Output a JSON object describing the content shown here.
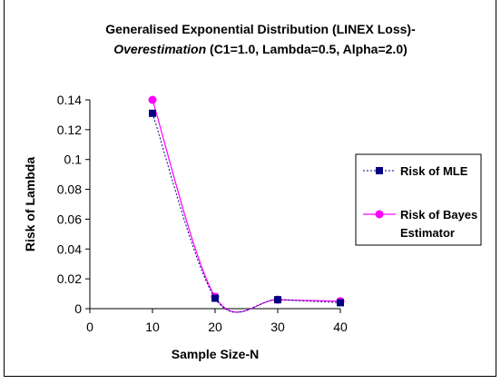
{
  "chart_data": {
    "type": "line",
    "title_line1": "Generalised Exponential Distribution (LINEX Loss)-",
    "title_line2_italic": "Overestimation",
    "title_line2_rest": " (C1=1.0, Lambda=0.5, Alpha=2.0)",
    "xlabel": "Sample Size-N",
    "ylabel": "Risk of Lambda",
    "xlim": [
      0,
      40
    ],
    "ylim": [
      0,
      0.14
    ],
    "x_ticks": [
      "0",
      "10",
      "20",
      "30",
      "40"
    ],
    "y_ticks": [
      "0",
      "0.02",
      "0.04",
      "0.06",
      "0.08",
      "0.1",
      "0.12",
      "0.14"
    ],
    "x": [
      10,
      20,
      30,
      40
    ],
    "series": [
      {
        "name": "Risk of MLE",
        "values": [
          0.131,
          0.007,
          0.006,
          0.004
        ],
        "color": "#000080",
        "marker": "square",
        "line_style": "dotted"
      },
      {
        "name_line1": "Risk of Bayes",
        "name_line2": "Estimator",
        "values": [
          0.14,
          0.008,
          0.006,
          0.005
        ],
        "color": "#ff00ff",
        "marker": "circle",
        "line_style": "solid"
      }
    ],
    "legend_position": "right",
    "grid": false
  }
}
